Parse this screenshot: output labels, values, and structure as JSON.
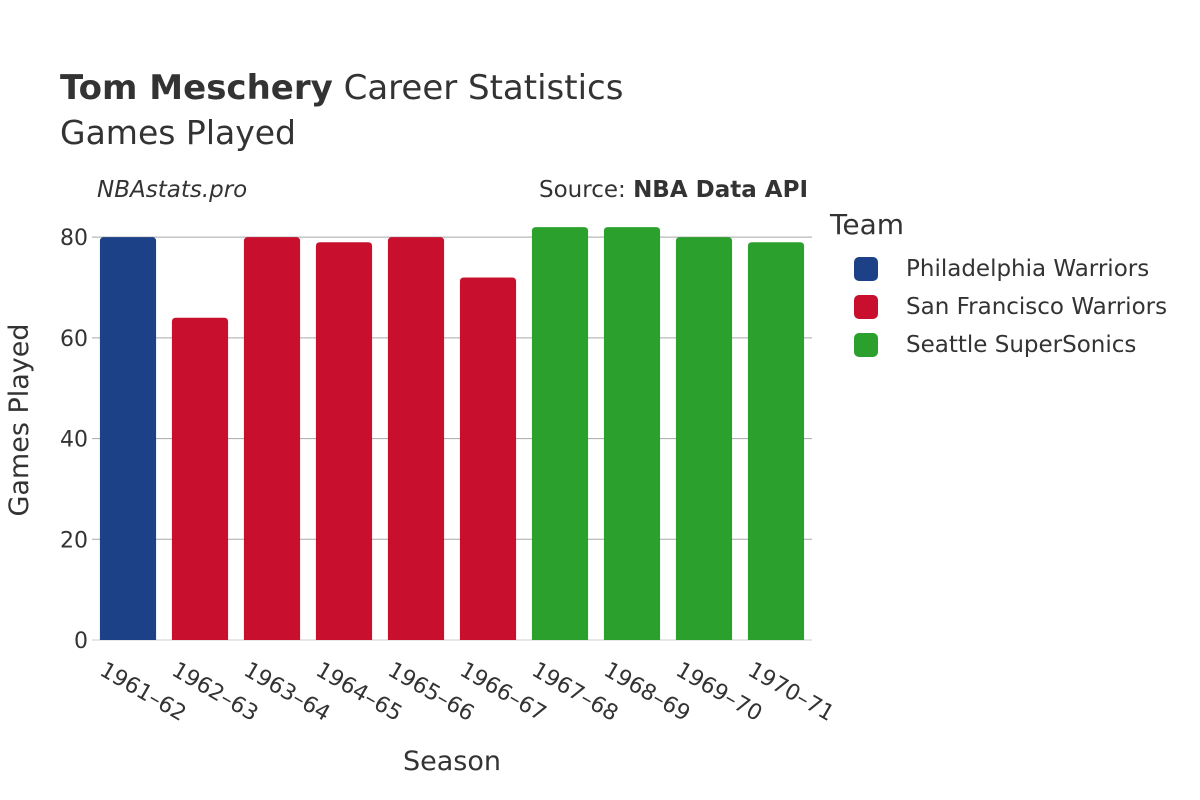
{
  "header": {
    "title_bold": "Tom Meschery",
    "title_rest": " Career Statistics",
    "subtitle": "Games Played",
    "watermark": "NBAstats.pro",
    "source_prefix": "Source: ",
    "source_name": "NBA Data API"
  },
  "legend": {
    "title": "Team",
    "items": [
      {
        "label": "Philadelphia Warriors",
        "color": "#1c4187"
      },
      {
        "label": "San Francisco Warriors",
        "color": "#c8102e"
      },
      {
        "label": "Seattle SuperSonics",
        "color": "#2ca02c"
      }
    ]
  },
  "chart_data": {
    "type": "bar",
    "xlabel": "Season",
    "ylabel": "Games Played",
    "ylim": [
      0,
      85
    ],
    "yticks": [
      0,
      20,
      40,
      60,
      80
    ],
    "grid": true,
    "legend_position": "right",
    "categories": [
      "1961–62",
      "1962–63",
      "1963–64",
      "1964–65",
      "1965–66",
      "1966–67",
      "1967–68",
      "1968–69",
      "1969–70",
      "1970–71"
    ],
    "values": [
      80,
      64,
      80,
      79,
      80,
      72,
      82,
      82,
      80,
      79
    ],
    "teams": [
      "Philadelphia Warriors",
      "San Francisco Warriors",
      "San Francisco Warriors",
      "San Francisco Warriors",
      "San Francisco Warriors",
      "San Francisco Warriors",
      "Seattle SuperSonics",
      "Seattle SuperSonics",
      "Seattle SuperSonics",
      "Seattle SuperSonics"
    ]
  }
}
